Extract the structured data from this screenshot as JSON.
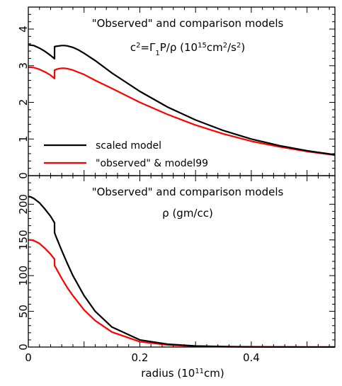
{
  "chart_data": [
    {
      "type": "line",
      "title_line1": "\"Observed\" and comparison models",
      "title_line2": {
        "prefix": "c",
        "sup1": "2",
        "mid1": "=Γ",
        "sub1": "1",
        "mid2": "P/ρ  (10",
        "sup2": "15",
        "mid3": "cm",
        "sup3": "2",
        "mid4": "/s",
        "sup4": "2",
        "suffix": ")"
      },
      "xlim": [
        0,
        0.55
      ],
      "ylim": [
        0,
        4.6
      ],
      "yticks": [
        0,
        1,
        2,
        3,
        4
      ],
      "ytick_labels": [
        "0",
        "1",
        "2",
        "3",
        "4"
      ],
      "legend_position": "bottom-left",
      "series": [
        {
          "name": "scaled model",
          "color": "#000000",
          "x": [
            0,
            0.01,
            0.02,
            0.03,
            0.04,
            0.047,
            0.0471,
            0.05,
            0.055,
            0.06,
            0.065,
            0.07,
            0.08,
            0.09,
            0.1,
            0.12,
            0.15,
            0.2,
            0.25,
            0.3,
            0.35,
            0.4,
            0.45,
            0.5,
            0.55
          ],
          "y": [
            3.57,
            3.55,
            3.48,
            3.39,
            3.28,
            3.19,
            3.52,
            3.53,
            3.54,
            3.55,
            3.55,
            3.54,
            3.5,
            3.43,
            3.34,
            3.14,
            2.8,
            2.3,
            1.87,
            1.52,
            1.23,
            1.0,
            0.82,
            0.68,
            0.57
          ]
        },
        {
          "name": "\"observed\" & model99",
          "color": "#ff0000",
          "x": [
            0,
            0.01,
            0.02,
            0.03,
            0.04,
            0.047,
            0.0471,
            0.05,
            0.055,
            0.06,
            0.065,
            0.07,
            0.08,
            0.09,
            0.1,
            0.12,
            0.15,
            0.2,
            0.25,
            0.3,
            0.35,
            0.4,
            0.45,
            0.5,
            0.55
          ],
          "y": [
            2.96,
            2.95,
            2.9,
            2.83,
            2.74,
            2.65,
            2.88,
            2.9,
            2.92,
            2.93,
            2.93,
            2.92,
            2.88,
            2.82,
            2.76,
            2.6,
            2.38,
            2.0,
            1.67,
            1.38,
            1.14,
            0.94,
            0.79,
            0.66,
            0.56
          ]
        }
      ]
    },
    {
      "type": "line",
      "title_line1": "\"Observed\" and comparison models",
      "title_line2": "ρ  (gm/cc)",
      "xlabel": {
        "prefix": "radius  (10",
        "sup": "11",
        "suffix": "cm)"
      },
      "xlim": [
        0,
        0.55
      ],
      "ylim": [
        0,
        240
      ],
      "xticks": [
        0,
        0.2,
        0.4
      ],
      "xtick_labels": [
        "0",
        "0.2",
        "0.4"
      ],
      "yticks": [
        0,
        50,
        100,
        150,
        200
      ],
      "ytick_labels": [
        "0",
        "50",
        "100",
        "150",
        "200"
      ],
      "series": [
        {
          "name": "scaled model",
          "color": "#000000",
          "x": [
            0,
            0.005,
            0.01,
            0.02,
            0.03,
            0.04,
            0.047,
            0.0471,
            0.05,
            0.06,
            0.07,
            0.08,
            0.1,
            0.12,
            0.15,
            0.2,
            0.25,
            0.3,
            0.35,
            0.4,
            0.45,
            0.5,
            0.55
          ],
          "y": [
            211,
            210,
            208,
            202,
            193,
            183,
            174,
            160,
            154,
            135,
            117,
            100,
            72,
            50,
            28,
            10,
            4,
            1.5,
            0.6,
            0.3,
            0.15,
            0.08,
            0.05
          ]
        },
        {
          "name": "\"observed\" & model99",
          "color": "#ff0000",
          "x": [
            0,
            0.005,
            0.01,
            0.02,
            0.03,
            0.04,
            0.047,
            0.0471,
            0.05,
            0.06,
            0.07,
            0.08,
            0.1,
            0.12,
            0.15,
            0.2,
            0.25,
            0.3,
            0.35,
            0.4,
            0.45,
            0.5,
            0.55
          ],
          "y": [
            150,
            150,
            149,
            145,
            138,
            130,
            123,
            114,
            110,
            96,
            83,
            72,
            52,
            37,
            21,
            7.5,
            3,
            1.2,
            0.5,
            0.25,
            0.12,
            0.07,
            0.04
          ]
        }
      ]
    }
  ]
}
